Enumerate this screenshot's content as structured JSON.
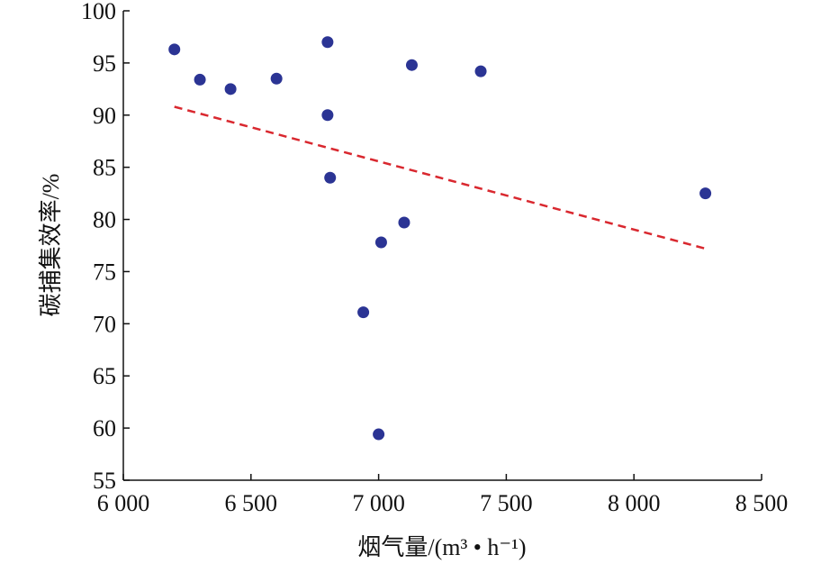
{
  "chart_data": {
    "type": "scatter",
    "title": "",
    "xlabel": "烟气量/(m³ • h⁻¹)",
    "ylabel": "碳捕集效率/%",
    "xlim": [
      6000,
      8500
    ],
    "ylim": [
      55,
      100
    ],
    "x_ticks": [
      6000,
      6500,
      7000,
      7500,
      8000,
      8500
    ],
    "x_tick_labels": [
      "6 000",
      "6 500",
      "7 000",
      "7 500",
      "8 000",
      "8 500"
    ],
    "y_ticks": [
      55,
      60,
      65,
      70,
      75,
      80,
      85,
      90,
      95,
      100
    ],
    "y_tick_labels": [
      "55",
      "60",
      "65",
      "70",
      "75",
      "80",
      "85",
      "90",
      "95",
      "100"
    ],
    "grid": false,
    "series": [
      {
        "marker_color": "#2b3494",
        "points": [
          {
            "x": 6200,
            "y": 96.3
          },
          {
            "x": 6300,
            "y": 93.4
          },
          {
            "x": 6420,
            "y": 92.5
          },
          {
            "x": 6600,
            "y": 93.5
          },
          {
            "x": 6800,
            "y": 97.0
          },
          {
            "x": 6800,
            "y": 90.0
          },
          {
            "x": 6810,
            "y": 84.0
          },
          {
            "x": 6940,
            "y": 71.1
          },
          {
            "x": 7000,
            "y": 59.4
          },
          {
            "x": 7010,
            "y": 77.8
          },
          {
            "x": 7100,
            "y": 79.7
          },
          {
            "x": 7130,
            "y": 94.8
          },
          {
            "x": 7400,
            "y": 94.2
          },
          {
            "x": 8280,
            "y": 82.5
          }
        ]
      }
    ],
    "trendline": {
      "style": "dashed",
      "color": "#d9282f",
      "x": [
        6200,
        8280
      ],
      "y": [
        90.8,
        77.2
      ]
    }
  }
}
